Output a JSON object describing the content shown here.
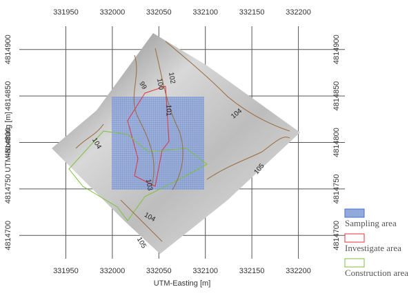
{
  "chart_data": {
    "type": "map",
    "xlabel": "UTM-Easting [m]",
    "ylabel": "UTM-Northing [m]",
    "xlim": [
      331900,
      332250
    ],
    "ylim": [
      4814675,
      4814925
    ],
    "xticks": [
      331950,
      332000,
      332050,
      332100,
      332150,
      332200
    ],
    "yticks": [
      4814700,
      4814750,
      4814800,
      4814850,
      4814900
    ],
    "grid": true,
    "contour_labels": [
      "99",
      "100",
      "102",
      "101",
      "104",
      "105",
      "103",
      "104",
      "105",
      "104"
    ],
    "legend": [
      {
        "name": "Sampling area",
        "color": "#4a6fc4"
      },
      {
        "name": "Investigate area",
        "color": "#e0303a"
      },
      {
        "name": "Construction area",
        "color": "#7cc03a"
      }
    ]
  }
}
